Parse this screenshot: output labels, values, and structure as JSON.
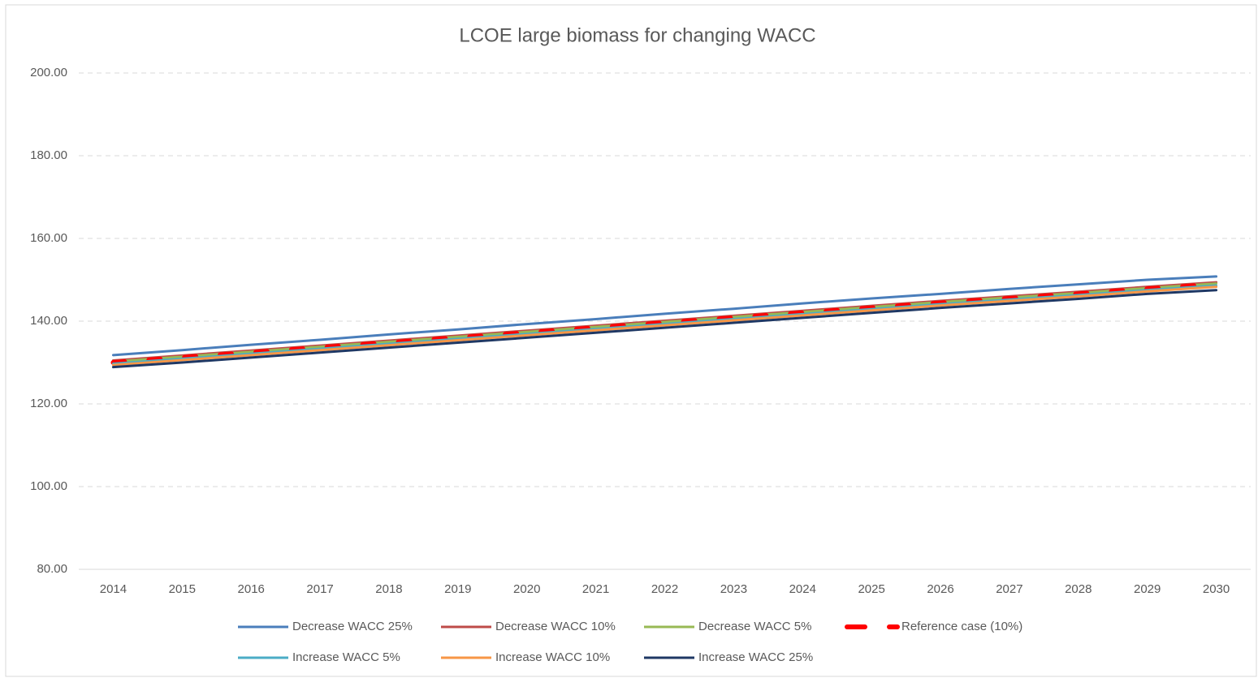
{
  "chart_data": {
    "type": "line",
    "title": "LCOE large biomass for changing WACC",
    "categories": [
      "2014",
      "2015",
      "2016",
      "2017",
      "2018",
      "2019",
      "2020",
      "2021",
      "2022",
      "2023",
      "2024",
      "2025",
      "2026",
      "2027",
      "2028",
      "2029",
      "2030"
    ],
    "series": [
      {
        "name": "Decrease WACC 25%",
        "color": "#4a7ebb",
        "values": [
          131.8,
          133.0,
          134.3,
          135.5,
          136.8,
          138.0,
          139.3,
          140.5,
          141.8,
          143.0,
          144.3,
          145.5,
          146.6,
          147.8,
          148.9,
          150.0,
          150.8
        ]
      },
      {
        "name": "Decrease WACC 10%",
        "color": "#be4b48",
        "values": [
          130.5,
          131.7,
          132.9,
          134.1,
          135.3,
          136.5,
          137.7,
          138.9,
          140.1,
          141.3,
          142.5,
          143.7,
          144.9,
          146.0,
          147.1,
          148.3,
          149.4
        ]
      },
      {
        "name": "Decrease WACC 5%",
        "color": "#98b954",
        "values": [
          130.2,
          131.4,
          132.6,
          133.8,
          135.0,
          136.2,
          137.4,
          138.6,
          139.8,
          141.0,
          142.2,
          143.4,
          144.6,
          145.7,
          146.8,
          148.0,
          149.1
        ]
      },
      {
        "name": "Reference case (10%)",
        "color": "#ff0000",
        "dashed": true,
        "values": [
          130.0,
          131.2,
          132.4,
          133.6,
          134.8,
          136.0,
          137.2,
          138.4,
          139.6,
          140.8,
          142.0,
          143.2,
          144.4,
          145.5,
          146.6,
          147.8,
          148.9
        ]
      },
      {
        "name": "Increase WACC 5%",
        "color": "#4bacc6",
        "values": [
          129.7,
          130.9,
          132.1,
          133.3,
          134.5,
          135.7,
          136.9,
          138.1,
          139.3,
          140.5,
          141.7,
          142.9,
          144.1,
          145.2,
          146.3,
          147.5,
          148.6
        ]
      },
      {
        "name": "Increase WACC 10%",
        "color": "#f79646",
        "values": [
          129.4,
          130.6,
          131.8,
          133.0,
          134.2,
          135.4,
          136.6,
          137.8,
          139.0,
          140.2,
          141.4,
          142.6,
          143.8,
          144.9,
          146.0,
          147.2,
          148.3
        ]
      },
      {
        "name": "Increase WACC 25%",
        "color": "#1f3864",
        "values": [
          128.9,
          130.0,
          131.2,
          132.4,
          133.6,
          134.8,
          136.0,
          137.2,
          138.4,
          139.6,
          140.8,
          142.0,
          143.2,
          144.3,
          145.4,
          146.6,
          147.5
        ]
      }
    ],
    "ylim": [
      80,
      200
    ],
    "yticks": [
      {
        "value": 80,
        "label": "80.00"
      },
      {
        "value": 100,
        "label": "100.00"
      },
      {
        "value": 120,
        "label": "120.00"
      },
      {
        "value": 140,
        "label": "140.00"
      },
      {
        "value": 160,
        "label": "160.00"
      },
      {
        "value": 180,
        "label": "180.00"
      },
      {
        "value": 200,
        "label": "200.00"
      }
    ],
    "grid": true,
    "legend": "bottom"
  }
}
